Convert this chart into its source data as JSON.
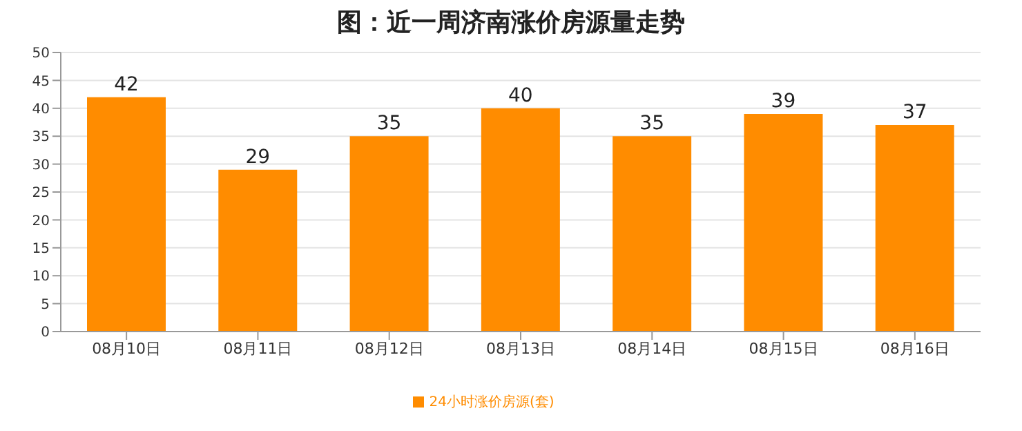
{
  "chart_data": {
    "type": "bar",
    "title": "图：近一周济南涨价房源量走势",
    "categories": [
      "08月10日",
      "08月11日",
      "08月12日",
      "08月13日",
      "08月14日",
      "08月15日",
      "08月16日"
    ],
    "series": [
      {
        "name": "24小时涨价房源(套)",
        "color": "#ff8c00",
        "values": [
          42,
          29,
          35,
          40,
          35,
          39,
          37
        ]
      }
    ],
    "ylim": [
      0,
      50
    ],
    "yticks": [
      0,
      5,
      10,
      15,
      20,
      25,
      30,
      35,
      40,
      45,
      50
    ],
    "grid": "y",
    "legend": "bottom",
    "data_labels": true
  }
}
